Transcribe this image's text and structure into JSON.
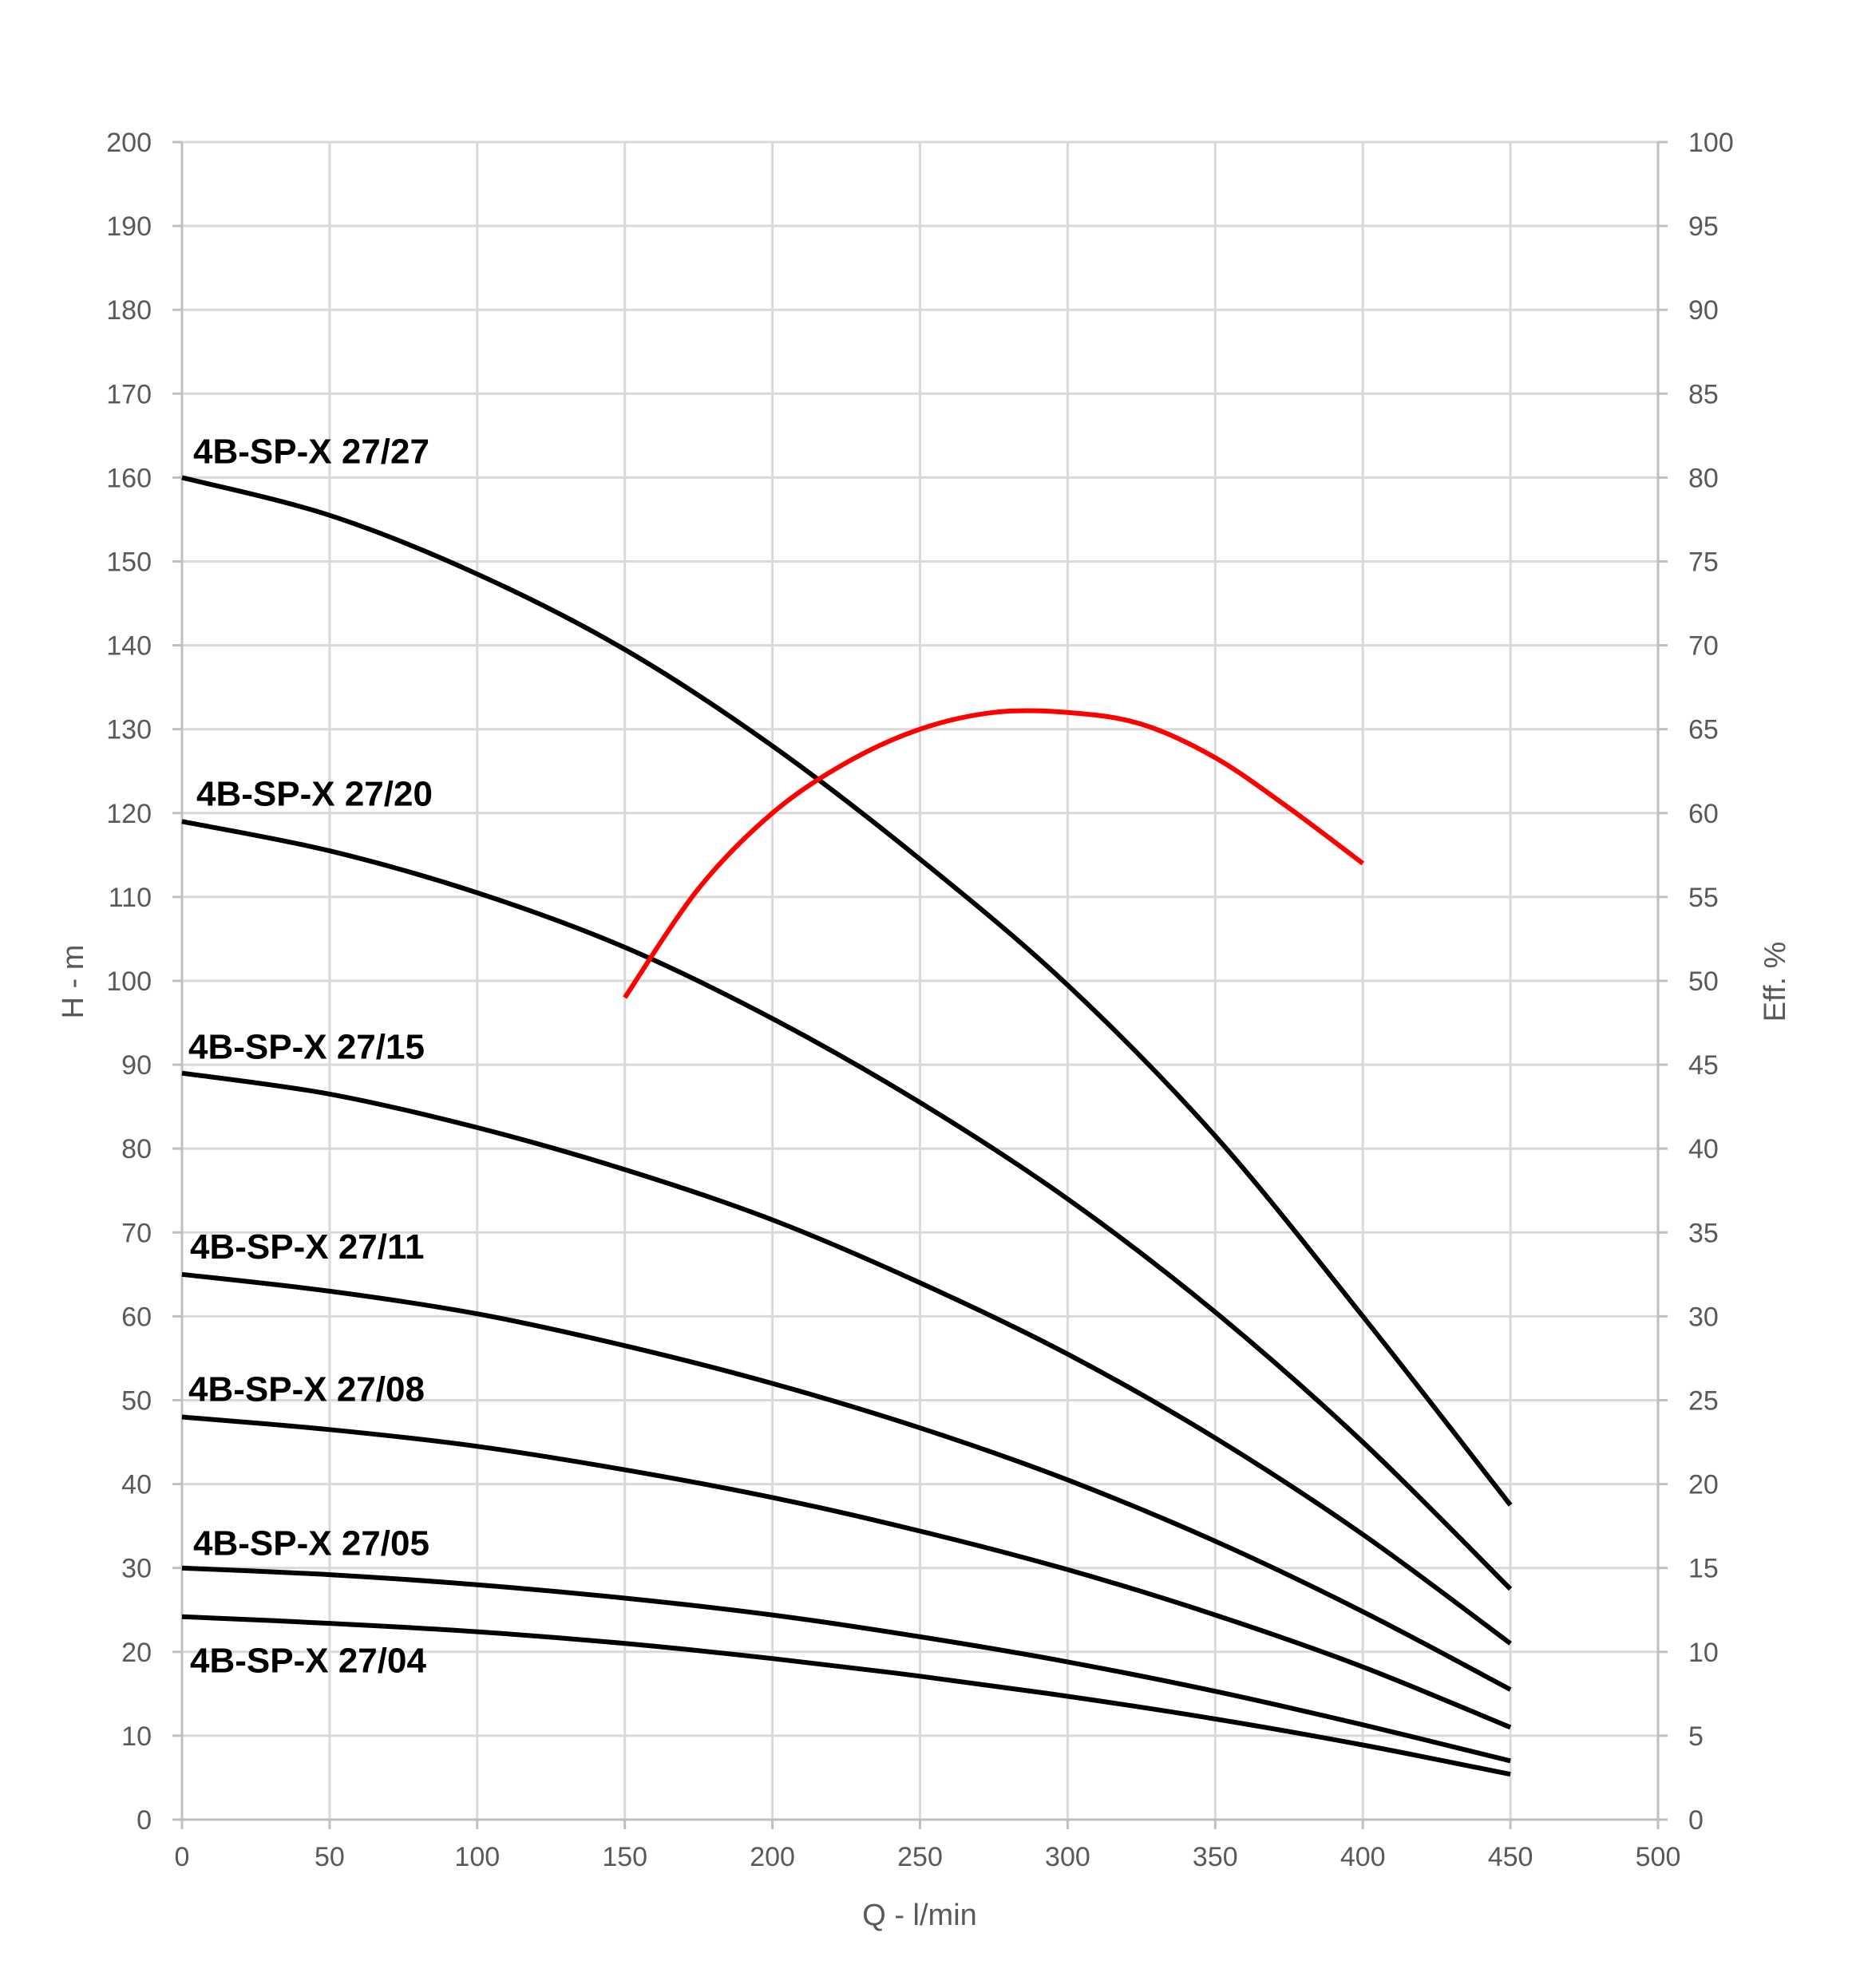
{
  "chart_data": {
    "type": "line",
    "title": "",
    "xlabel": "Q - l/min",
    "ylabel": "H - m",
    "y2label": "Eff. %",
    "xlim": [
      0,
      500
    ],
    "ylim": [
      0,
      200
    ],
    "y2lim": [
      0,
      100
    ],
    "x_ticks": [
      0,
      50,
      100,
      150,
      200,
      250,
      300,
      350,
      400,
      450,
      500
    ],
    "y_ticks": [
      0,
      10,
      20,
      30,
      40,
      50,
      60,
      70,
      80,
      90,
      100,
      110,
      120,
      130,
      140,
      150,
      160,
      170,
      180,
      190,
      200
    ],
    "y2_ticks": [
      0,
      5,
      10,
      15,
      20,
      25,
      30,
      35,
      40,
      45,
      50,
      55,
      60,
      65,
      70,
      75,
      80,
      85,
      90,
      95,
      100
    ],
    "grid": true,
    "legend": "none",
    "colors": {
      "head": "#000000",
      "efficiency": "#ff0000",
      "grid": "#d9d9d9",
      "text": "#595959"
    },
    "series": [
      {
        "name": "4B-SP-X 27/27",
        "axis": "left",
        "x": [
          0,
          50,
          100,
          150,
          200,
          250,
          300,
          350,
          400,
          450
        ],
        "y": [
          160,
          155.5,
          148.5,
          139.5,
          128,
          114.5,
          99.5,
          81.5,
          60,
          37.5
        ]
      },
      {
        "name": "4B-SP-X 27/20",
        "axis": "left",
        "x": [
          0,
          50,
          100,
          150,
          200,
          250,
          300,
          350,
          400,
          450
        ],
        "y": [
          119,
          115.5,
          110.5,
          104,
          95.5,
          85.5,
          74,
          60.5,
          45,
          27.5
        ]
      },
      {
        "name": "4B-SP-X 27/15",
        "axis": "left",
        "x": [
          0,
          50,
          100,
          150,
          200,
          250,
          300,
          350,
          400,
          450
        ],
        "y": [
          89,
          86.5,
          82.5,
          77.5,
          71.5,
          64,
          55.5,
          45.5,
          34,
          21
        ]
      },
      {
        "name": "4B-SP-X 27/11",
        "axis": "left",
        "x": [
          0,
          50,
          100,
          150,
          200,
          250,
          300,
          350,
          400,
          450
        ],
        "y": [
          65,
          63,
          60.3,
          56.5,
          52,
          46.7,
          40.5,
          33.2,
          24.8,
          15.5
        ]
      },
      {
        "name": "4B-SP-X 27/08",
        "axis": "left",
        "x": [
          0,
          50,
          100,
          150,
          200,
          250,
          300,
          350,
          400,
          450
        ],
        "y": [
          48,
          46.5,
          44.5,
          41.7,
          38.4,
          34.4,
          29.8,
          24.4,
          18.2,
          11
        ]
      },
      {
        "name": "4B-SP-X 27/05",
        "axis": "left",
        "x": [
          0,
          50,
          100,
          150,
          200,
          250,
          300,
          350,
          400,
          450
        ],
        "y": [
          30,
          29.2,
          28,
          26.4,
          24.4,
          21.8,
          18.8,
          15.3,
          11.3,
          7
        ]
      },
      {
        "name": "4B-SP-X 27/04",
        "axis": "left",
        "x": [
          0,
          50,
          100,
          150,
          200,
          250,
          300,
          350,
          400,
          450
        ],
        "y": [
          24.2,
          23.4,
          22.4,
          21,
          19.2,
          17.1,
          14.7,
          12,
          8.9,
          5.4
        ]
      },
      {
        "name": "",
        "axis": "right",
        "x": [
          150,
          175,
          200,
          225,
          250,
          275,
          300,
          325,
          350,
          375,
          400
        ],
        "y": [
          49,
          55.5,
          60,
          63,
          65,
          66,
          66,
          65.3,
          63.3,
          60.3,
          57
        ]
      }
    ]
  }
}
